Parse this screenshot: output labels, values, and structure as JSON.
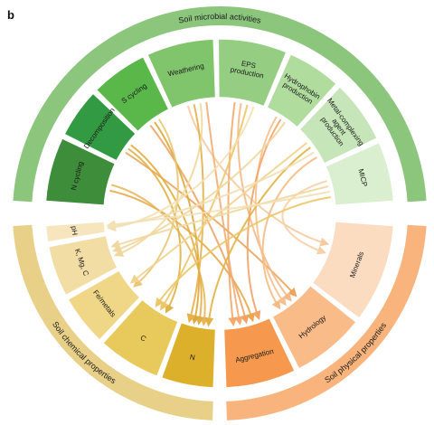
{
  "panel_label": "b",
  "groups": [
    {
      "label": "Soil microbial activities",
      "color": "#8cc67d",
      "start": -86.5,
      "end": 86.5
    },
    {
      "label": "Soil physical properties",
      "color": "#f8b47c",
      "start": 93.5,
      "end": 178
    },
    {
      "label": "Soil chemical properties",
      "color": "#e8d088",
      "start": 182,
      "end": 266.5
    }
  ],
  "segments": [
    {
      "label": "N cycling",
      "color": "#3e8d3a",
      "start": -86,
      "end": -64.5,
      "text_color": "#ffffff",
      "group": 0
    },
    {
      "label": "Decomposition",
      "color": "#329a42",
      "start": -63,
      "end": -46.5,
      "text_color": "#ffffff",
      "group": 0
    },
    {
      "label": "S cycling",
      "color": "#5ab84a",
      "start": -45,
      "end": -26,
      "text_color": "#111111",
      "group": 0
    },
    {
      "label": "Weathering",
      "color": "#80c46c",
      "start": -24.5,
      "end": -2,
      "text_color": "#111111",
      "group": 0
    },
    {
      "label": "EPS production",
      "color": "#95cd82",
      "start": -0.5,
      "end": 22.5,
      "text_color": "#111111",
      "group": 0
    },
    {
      "label": "Hydrophobin production",
      "color": "#b0dc9e",
      "start": 24,
      "end": 42,
      "text_color": "#111111",
      "group": 0
    },
    {
      "label": "Metal-complexing agent production",
      "color": "#c6e5b8",
      "start": 43.5,
      "end": 64.5,
      "text_color": "#111111",
      "group": 0
    },
    {
      "label": "MICP",
      "color": "#daefd0",
      "start": 66,
      "end": 86,
      "text_color": "#111111",
      "group": 0
    },
    {
      "label": "Minerals",
      "color": "#fcdcc0",
      "start": 94,
      "end": 127,
      "text_color": "#111111",
      "group": 1
    },
    {
      "label": "Hydrology",
      "color": "#f9bb88",
      "start": 128.5,
      "end": 153,
      "text_color": "#111111",
      "group": 1
    },
    {
      "label": "Aggregation",
      "color": "#f6994e",
      "start": 154.5,
      "end": 178,
      "text_color": "#111111",
      "group": 1
    },
    {
      "label": "N",
      "color": "#ddb02c",
      "start": 182,
      "end": 199.5,
      "text_color": "#111111",
      "group": 2
    },
    {
      "label": "C",
      "color": "#e8c95c",
      "start": 201,
      "end": 222,
      "text_color": "#111111",
      "group": 2
    },
    {
      "label": "Fe/metals",
      "color": "#efd787",
      "start": 223.5,
      "end": 240.5,
      "text_color": "#111111",
      "group": 2
    },
    {
      "label": "K, Mg, C",
      "color": "#f2dea5",
      "start": 242,
      "end": 259,
      "text_color": "#111111",
      "group": 2
    },
    {
      "label": "pH",
      "color": "#f7e6bd",
      "start": 260.5,
      "end": 266,
      "text_color": "#111111",
      "group": 2
    }
  ],
  "links": [
    {
      "from": 0,
      "to": 10,
      "color": "#e9a84c"
    },
    {
      "from": 0,
      "to": 11,
      "color": "#e7b85a"
    },
    {
      "from": 1,
      "to": 9,
      "color": "#eca45c"
    },
    {
      "from": 1,
      "to": 12,
      "color": "#dfb246"
    },
    {
      "from": 1,
      "to": 11,
      "color": "#e4ad45"
    },
    {
      "from": 2,
      "to": 10,
      "color": "#f0a466"
    },
    {
      "from": 2,
      "to": 11,
      "color": "#d9aa3c"
    },
    {
      "from": 2,
      "to": 13,
      "color": "#eac675"
    },
    {
      "from": 3,
      "to": 8,
      "color": "#f7caa0"
    },
    {
      "from": 3,
      "to": 11,
      "color": "#e6b04a"
    },
    {
      "from": 3,
      "to": 14,
      "color": "#f0d89a"
    },
    {
      "from": 3,
      "to": 10,
      "color": "#f3ad74"
    },
    {
      "from": 4,
      "to": 10,
      "color": "#f4a96a"
    },
    {
      "from": 4,
      "to": 9,
      "color": "#f6b886"
    },
    {
      "from": 4,
      "to": 12,
      "color": "#ecc668"
    },
    {
      "from": 4,
      "to": 15,
      "color": "#f4e1b2"
    },
    {
      "from": 5,
      "to": 9,
      "color": "#f7c08e"
    },
    {
      "from": 5,
      "to": 10,
      "color": "#f4a466"
    },
    {
      "from": 5,
      "to": 14,
      "color": "#efd6a0"
    },
    {
      "from": 6,
      "to": 13,
      "color": "#f0d38e"
    },
    {
      "from": 6,
      "to": 11,
      "color": "#e2b244"
    },
    {
      "from": 6,
      "to": 15,
      "color": "#f2dfb0"
    },
    {
      "from": 6,
      "to": 9,
      "color": "#f6bb85"
    },
    {
      "from": 7,
      "to": 8,
      "color": "#f8cfa8"
    },
    {
      "from": 7,
      "to": 14,
      "color": "#f0d79f"
    },
    {
      "from": 7,
      "to": 15,
      "color": "#f3e0b4"
    },
    {
      "from": 7,
      "to": 12,
      "color": "#ecc768"
    }
  ]
}
